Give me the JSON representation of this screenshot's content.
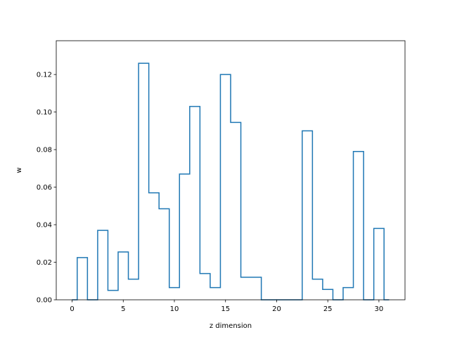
{
  "chart_data": {
    "type": "step",
    "xlabel": "z dimension",
    "ylabel": "w",
    "xlim": [
      -1.55,
      32.55
    ],
    "ylim": [
      0,
      0.138
    ],
    "xticks": [
      0,
      5,
      10,
      15,
      20,
      25,
      30
    ],
    "yticks": [
      0.0,
      0.02,
      0.04,
      0.06,
      0.08,
      0.1,
      0.12
    ],
    "ytick_labels": [
      "0.00",
      "0.02",
      "0.04",
      "0.06",
      "0.08",
      "0.10",
      "0.12"
    ],
    "line_color": "#1f77b4",
    "x": [
      0,
      1,
      2,
      3,
      4,
      5,
      6,
      7,
      8,
      9,
      10,
      11,
      12,
      13,
      14,
      15,
      16,
      17,
      18,
      19,
      20,
      21,
      22,
      23,
      24,
      25,
      26,
      27,
      28,
      29,
      30,
      31
    ],
    "values": [
      0.0,
      0.0225,
      0.0,
      0.037,
      0.005,
      0.0255,
      0.011,
      0.126,
      0.057,
      0.0485,
      0.0065,
      0.067,
      0.103,
      0.014,
      0.0065,
      0.12,
      0.0945,
      0.012,
      0.012,
      0.0,
      0.0,
      0.0,
      0.0,
      0.09,
      0.011,
      0.0055,
      0.0,
      0.0065,
      0.079,
      0.0,
      0.038,
      0.0
    ]
  }
}
